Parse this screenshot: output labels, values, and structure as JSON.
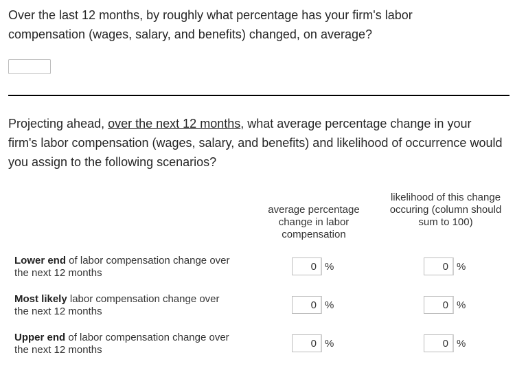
{
  "question1": {
    "text": "Over the last 12 months, by roughly what percentage has your firm's labor compensation (wages, salary, and benefits) changed, on average?",
    "value": ""
  },
  "question2": {
    "text_before": "Projecting ahead, ",
    "text_underlined": "over the next 12 months",
    "text_after": ", what average percentage change in your firm's labor compensation (wages, salary, and benefits) and likelihood of occurrence would you assign to the following scenarios?"
  },
  "columns": {
    "avg_change": "average percentage change in labor compensation",
    "likelihood": "likelihood of this change occuring (column should sum to 100)"
  },
  "rows": [
    {
      "bold": "Lower end",
      "rest": " of labor compensation change over the next 12 months",
      "avg_value": "0",
      "likelihood_value": "0"
    },
    {
      "bold": "Most likely",
      "rest": " labor compensation change over the next 12 months",
      "avg_value": "0",
      "likelihood_value": "0"
    },
    {
      "bold": "Upper end",
      "rest": " of labor compensation change over the next 12 months",
      "avg_value": "0",
      "likelihood_value": "0"
    }
  ],
  "percent_symbol": "%"
}
